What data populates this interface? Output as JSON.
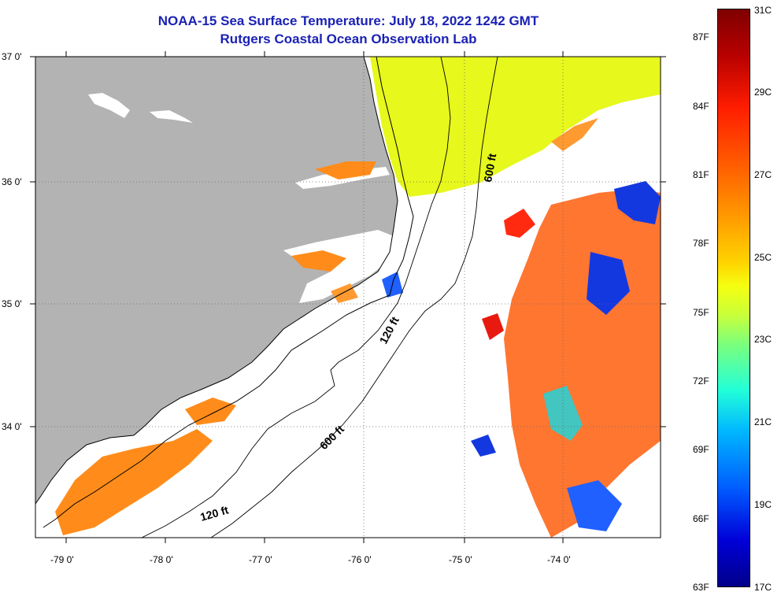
{
  "title": {
    "line1": "NOAA-15 Sea Surface Temperature:  July 18, 2022 1242 GMT",
    "line2": "Rutgers Coastal Ocean Observation Lab"
  },
  "map": {
    "latitude_labels": [
      "37 0'",
      "36 0'",
      "35 0'",
      "34 0'"
    ],
    "longitude_labels": [
      "-79 0'",
      "-78 0'",
      "-77 0'",
      "-76 0'",
      "-75 0'",
      "-74 0'"
    ],
    "depth_contour_labels": [
      "600 ft",
      "120 ft",
      "600 ft",
      "120 ft"
    ],
    "colors": {
      "land": "#b3b3b3",
      "no_data": "#ffffff",
      "warm_shelf": "#ff8c1a",
      "gulf_stream": "#ff6a1f",
      "slope_water": "#e6f81c",
      "cold_patch": "#1438e0"
    }
  },
  "colorbar": {
    "fahrenheit_labels": [
      "87F",
      "84F",
      "81F",
      "78F",
      "75F",
      "72F",
      "69F",
      "66F",
      "63F"
    ],
    "celsius_labels": [
      "31C",
      "29C",
      "27C",
      "25C",
      "23C",
      "21C",
      "19C",
      "17C"
    ]
  }
}
